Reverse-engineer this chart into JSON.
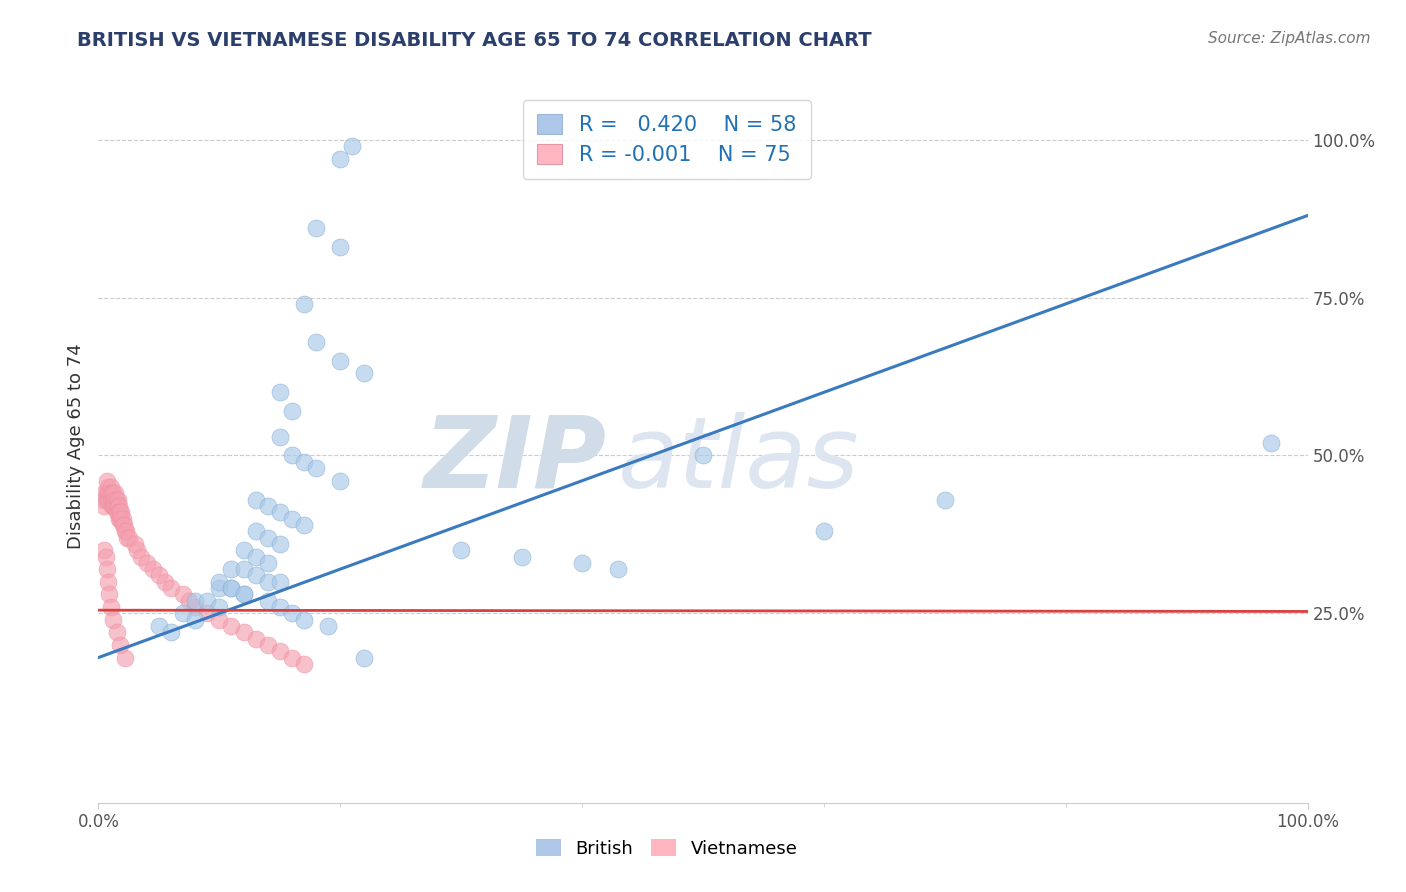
{
  "title": "BRITISH VS VIETNAMESE DISABILITY AGE 65 TO 74 CORRELATION CHART",
  "source_text": "Source: ZipAtlas.com",
  "ylabel": "Disability Age 65 to 74",
  "xlabel": "",
  "xlim": [
    0,
    1
  ],
  "ylim": [
    -0.05,
    1.08
  ],
  "x_tick_positions": [
    0.0,
    1.0
  ],
  "x_tick_labels": [
    "0.0%",
    "100.0%"
  ],
  "y_tick_positions": [
    0.25,
    0.5,
    0.75,
    1.0
  ],
  "y_tick_labels": [
    "25.0%",
    "50.0%",
    "75.0%",
    "100.0%"
  ],
  "grid_color": "#cccccc",
  "background_color": "#ffffff",
  "british_r": 0.42,
  "british_n": 58,
  "vietnamese_r": -0.001,
  "vietnamese_n": 75,
  "british_color": "#a8c8e8",
  "vietnamese_color": "#f4a0b0",
  "british_line_color": "#3a7abf",
  "vietnamese_line_color": "#d94040",
  "british_x": [
    0.2,
    0.21,
    0.18,
    0.2,
    0.17,
    0.18,
    0.2,
    0.22,
    0.15,
    0.16,
    0.15,
    0.16,
    0.17,
    0.18,
    0.2,
    0.13,
    0.14,
    0.15,
    0.16,
    0.17,
    0.13,
    0.14,
    0.15,
    0.12,
    0.13,
    0.14,
    0.11,
    0.12,
    0.13,
    0.14,
    0.15,
    0.1,
    0.11,
    0.12,
    0.08,
    0.09,
    0.1,
    0.07,
    0.08,
    0.05,
    0.06,
    0.3,
    0.35,
    0.4,
    0.43,
    0.5,
    0.6,
    0.7,
    0.97,
    0.1,
    0.11,
    0.12,
    0.14,
    0.15,
    0.16,
    0.17,
    0.19,
    0.22
  ],
  "british_y": [
    0.97,
    0.99,
    0.86,
    0.83,
    0.74,
    0.68,
    0.65,
    0.63,
    0.6,
    0.57,
    0.53,
    0.5,
    0.49,
    0.48,
    0.46,
    0.43,
    0.42,
    0.41,
    0.4,
    0.39,
    0.38,
    0.37,
    0.36,
    0.35,
    0.34,
    0.33,
    0.32,
    0.32,
    0.31,
    0.3,
    0.3,
    0.29,
    0.29,
    0.28,
    0.27,
    0.27,
    0.26,
    0.25,
    0.24,
    0.23,
    0.22,
    0.35,
    0.34,
    0.33,
    0.32,
    0.5,
    0.38,
    0.43,
    0.52,
    0.3,
    0.29,
    0.28,
    0.27,
    0.26,
    0.25,
    0.24,
    0.23,
    0.18
  ],
  "vietnamese_x": [
    0.005,
    0.005,
    0.005,
    0.007,
    0.007,
    0.007,
    0.008,
    0.008,
    0.008,
    0.009,
    0.009,
    0.01,
    0.01,
    0.01,
    0.011,
    0.011,
    0.011,
    0.012,
    0.012,
    0.012,
    0.013,
    0.013,
    0.014,
    0.014,
    0.014,
    0.015,
    0.015,
    0.015,
    0.016,
    0.016,
    0.016,
    0.017,
    0.017,
    0.017,
    0.018,
    0.018,
    0.019,
    0.019,
    0.02,
    0.02,
    0.021,
    0.022,
    0.023,
    0.024,
    0.025,
    0.03,
    0.032,
    0.035,
    0.04,
    0.045,
    0.05,
    0.055,
    0.06,
    0.07,
    0.075,
    0.08,
    0.09,
    0.1,
    0.11,
    0.12,
    0.13,
    0.14,
    0.15,
    0.16,
    0.17,
    0.005,
    0.006,
    0.007,
    0.008,
    0.009,
    0.01,
    0.012,
    0.015,
    0.018,
    0.022
  ],
  "vietnamese_y": [
    0.44,
    0.43,
    0.42,
    0.46,
    0.44,
    0.43,
    0.45,
    0.44,
    0.43,
    0.44,
    0.43,
    0.45,
    0.44,
    0.43,
    0.44,
    0.43,
    0.42,
    0.44,
    0.43,
    0.42,
    0.43,
    0.42,
    0.44,
    0.43,
    0.42,
    0.43,
    0.42,
    0.41,
    0.43,
    0.42,
    0.41,
    0.42,
    0.41,
    0.4,
    0.41,
    0.4,
    0.41,
    0.4,
    0.4,
    0.39,
    0.39,
    0.38,
    0.38,
    0.37,
    0.37,
    0.36,
    0.35,
    0.34,
    0.33,
    0.32,
    0.31,
    0.3,
    0.29,
    0.28,
    0.27,
    0.26,
    0.25,
    0.24,
    0.23,
    0.22,
    0.21,
    0.2,
    0.19,
    0.18,
    0.17,
    0.35,
    0.34,
    0.32,
    0.3,
    0.28,
    0.26,
    0.24,
    0.22,
    0.2,
    0.18
  ],
  "british_line_x": [
    0.0,
    1.0
  ],
  "british_line_y": [
    0.18,
    0.88
  ],
  "vietnamese_line_x": [
    0.0,
    1.0
  ],
  "vietnamese_line_y": [
    0.255,
    0.253
  ],
  "watermark_top": "ZIP",
  "watermark_bottom": "atlas",
  "watermark_color": "#d0dce8",
  "legend_color_british": "#aec6e8",
  "legend_color_vietnamese": "#ffb6c1",
  "legend_text_color": "#2171b5",
  "legend_r_british": "R =   0.420",
  "legend_n_british": "N = 58",
  "legend_r_vietnamese": "R = -0.001",
  "legend_n_vietnamese": "N = 75"
}
